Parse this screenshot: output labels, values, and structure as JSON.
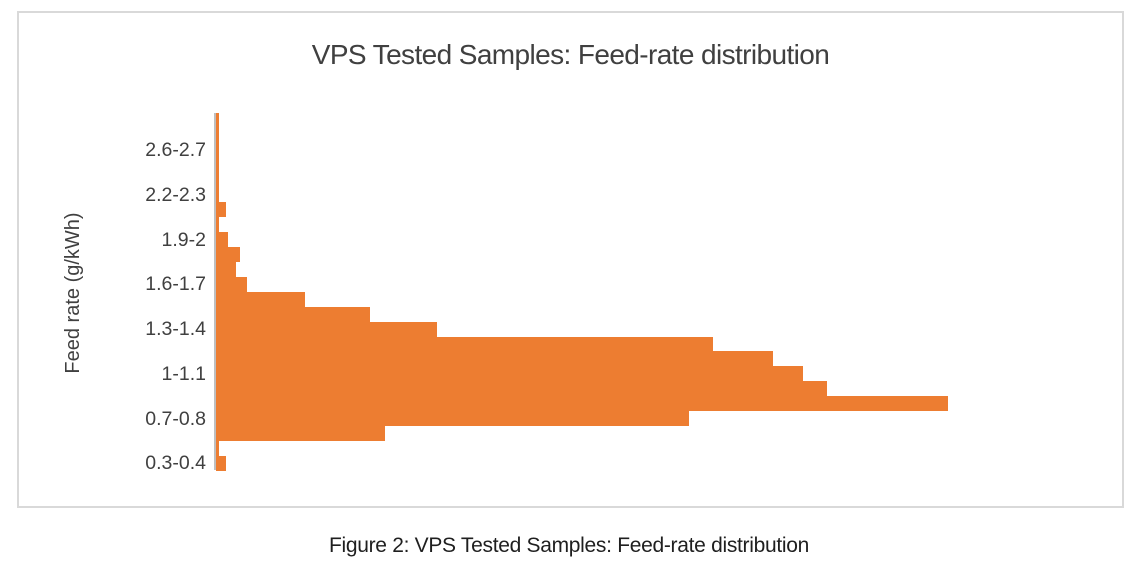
{
  "figure": {
    "caption": "Figure 2: VPS Tested Samples: Feed-rate distribution"
  },
  "chart_data": {
    "type": "bar",
    "orientation": "horizontal",
    "title": "VPS Tested Samples: Feed-rate distribution",
    "ylabel": "Feed rate (g/kWh)",
    "xlabel": "",
    "legend": "none",
    "grid": "off",
    "value_axis_visible": false,
    "value_units": "relative-length-px",
    "bar_color": "#ED7D31",
    "axis_line_color": "#BFBFBF",
    "text_color": "#404040",
    "tick_labels_shown": [
      "2.6-2.7",
      "2.2-2.3",
      "1.9-2",
      "1.6-1.7",
      "1.3-1.4",
      "1-1.1",
      "0.7-0.8",
      "0.3-0.4"
    ],
    "bins_top_to_bottom": [
      {
        "label": "",
        "value": 3
      },
      {
        "label": "",
        "value": 3
      },
      {
        "label": "2.6-2.7",
        "value": 3
      },
      {
        "label": "",
        "value": 3
      },
      {
        "label": "",
        "value": 3
      },
      {
        "label": "2.2-2.3",
        "value": 3
      },
      {
        "label": "",
        "value": 10
      },
      {
        "label": "",
        "value": 3
      },
      {
        "label": "1.9-2",
        "value": 12
      },
      {
        "label": "",
        "value": 24
      },
      {
        "label": "",
        "value": 20
      },
      {
        "label": "1.6-1.7",
        "value": 31
      },
      {
        "label": "",
        "value": 89
      },
      {
        "label": "",
        "value": 154
      },
      {
        "label": "1.3-1.4",
        "value": 221
      },
      {
        "label": "",
        "value": 497
      },
      {
        "label": "",
        "value": 557
      },
      {
        "label": "1-1.1",
        "value": 587
      },
      {
        "label": "",
        "value": 611
      },
      {
        "label": "",
        "value": 732
      },
      {
        "label": "0.7-0.8",
        "value": 473
      },
      {
        "label": "",
        "value": 169
      },
      {
        "label": "",
        "value": 3
      },
      {
        "label": "0.3-0.4",
        "value": 10
      }
    ]
  }
}
